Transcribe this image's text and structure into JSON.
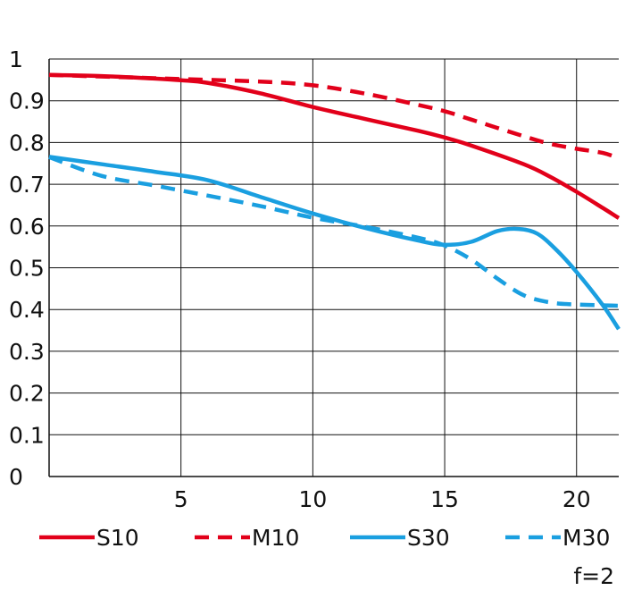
{
  "chart_data": {
    "type": "line",
    "title": "",
    "xlabel": "",
    "ylabel": "",
    "xlim": [
      0,
      21.6
    ],
    "ylim": [
      0,
      1
    ],
    "x_ticks": [
      "5",
      "10",
      "15",
      "20"
    ],
    "y_ticks": [
      "0",
      "0.1",
      "0.2",
      "0.3",
      "0.4",
      "0.5",
      "0.6",
      "0.7",
      "0.8",
      "0.9",
      "1"
    ],
    "grid": true,
    "legend_position": "bottom",
    "series": [
      {
        "name": "S10",
        "color": "#e2001a",
        "style": "solid",
        "points": [
          [
            0,
            0.962
          ],
          [
            2,
            0.959
          ],
          [
            4,
            0.953
          ],
          [
            5,
            0.949
          ],
          [
            6,
            0.943
          ],
          [
            8,
            0.918
          ],
          [
            10,
            0.885
          ],
          [
            12,
            0.856
          ],
          [
            14,
            0.828
          ],
          [
            15,
            0.812
          ],
          [
            16,
            0.793
          ],
          [
            18,
            0.748
          ],
          [
            19,
            0.718
          ],
          [
            20,
            0.682
          ],
          [
            21,
            0.643
          ],
          [
            21.6,
            0.619
          ]
        ]
      },
      {
        "name": "M10",
        "color": "#e2001a",
        "style": "dashed",
        "points": [
          [
            0,
            0.962
          ],
          [
            3,
            0.956
          ],
          [
            5,
            0.952
          ],
          [
            8,
            0.946
          ],
          [
            10,
            0.937
          ],
          [
            12,
            0.917
          ],
          [
            14,
            0.89
          ],
          [
            15,
            0.875
          ],
          [
            16,
            0.855
          ],
          [
            18,
            0.815
          ],
          [
            19,
            0.797
          ],
          [
            20,
            0.785
          ],
          [
            21,
            0.775
          ],
          [
            21.6,
            0.762
          ]
        ]
      },
      {
        "name": "S30",
        "color": "#1a9fe0",
        "style": "solid",
        "points": [
          [
            0,
            0.766
          ],
          [
            2,
            0.748
          ],
          [
            4,
            0.73
          ],
          [
            6,
            0.71
          ],
          [
            8,
            0.67
          ],
          [
            10,
            0.63
          ],
          [
            12,
            0.595
          ],
          [
            14,
            0.565
          ],
          [
            15,
            0.555
          ],
          [
            16,
            0.562
          ],
          [
            17,
            0.588
          ],
          [
            17.8,
            0.593
          ],
          [
            18.5,
            0.582
          ],
          [
            19.2,
            0.545
          ],
          [
            20,
            0.49
          ],
          [
            21,
            0.41
          ],
          [
            21.6,
            0.353
          ]
        ]
      },
      {
        "name": "M30",
        "color": "#1a9fe0",
        "style": "dashed",
        "points": [
          [
            0,
            0.765
          ],
          [
            2,
            0.72
          ],
          [
            4,
            0.697
          ],
          [
            6,
            0.673
          ],
          [
            8,
            0.648
          ],
          [
            10,
            0.62
          ],
          [
            12,
            0.598
          ],
          [
            14,
            0.572
          ],
          [
            15,
            0.553
          ],
          [
            16,
            0.52
          ],
          [
            17,
            0.474
          ],
          [
            18,
            0.434
          ],
          [
            19,
            0.417
          ],
          [
            20,
            0.412
          ],
          [
            21,
            0.41
          ],
          [
            21.6,
            0.409
          ]
        ]
      }
    ]
  },
  "footnote": "f=2"
}
